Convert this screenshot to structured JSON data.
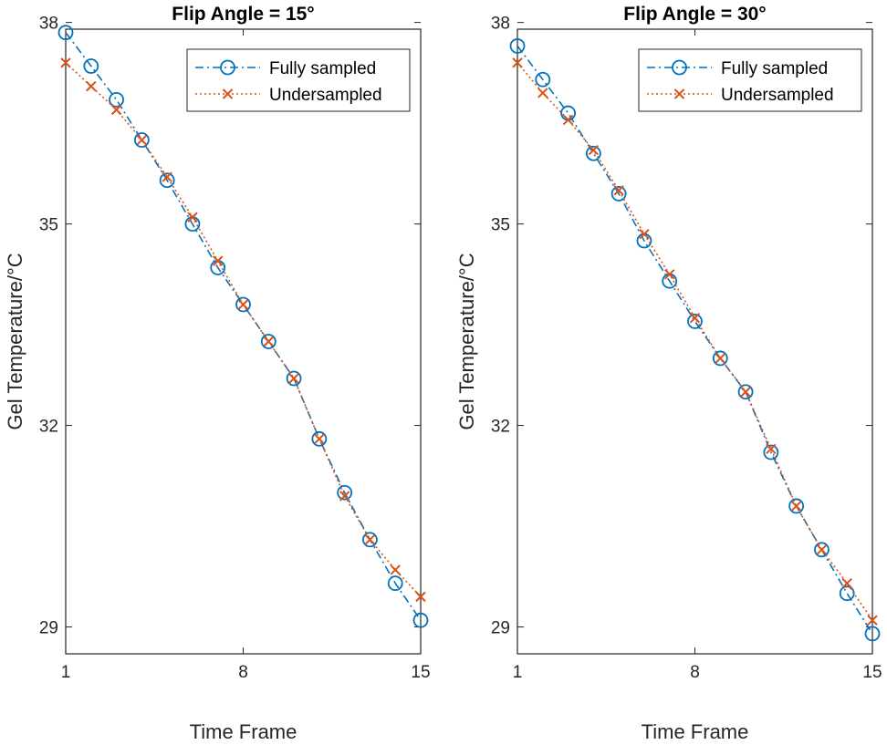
{
  "chart_data": [
    {
      "type": "line",
      "title": "Flip Angle = 15°",
      "xlabel": "Time Frame",
      "ylabel": "Gel Temperature/°C",
      "xlim": [
        1,
        15
      ],
      "ylim": [
        28.6,
        37.9
      ],
      "xticks": [
        1,
        8,
        15
      ],
      "yticks": [
        29,
        32,
        35,
        38
      ],
      "grid": false,
      "legend_position": "top-right",
      "series": [
        {
          "name": "Fully sampled",
          "color": "#0072BD",
          "linestyle": "dash-dot",
          "marker": "circle",
          "x": [
            1,
            2,
            3,
            4,
            5,
            6,
            7,
            8,
            9,
            10,
            11,
            12,
            13,
            14,
            15
          ],
          "y": [
            37.85,
            37.35,
            36.85,
            36.25,
            35.65,
            35.0,
            34.35,
            33.8,
            33.25,
            32.7,
            31.8,
            31.0,
            30.3,
            29.65,
            29.1
          ]
        },
        {
          "name": "Undersampled",
          "color": "#D95319",
          "linestyle": "dotted",
          "marker": "x",
          "x": [
            1,
            2,
            3,
            4,
            5,
            6,
            7,
            8,
            9,
            10,
            11,
            12,
            13,
            14,
            15
          ],
          "y": [
            37.4,
            37.05,
            36.7,
            36.25,
            35.7,
            35.1,
            34.45,
            33.8,
            33.25,
            32.7,
            31.8,
            30.95,
            30.3,
            29.85,
            29.45
          ]
        }
      ]
    },
    {
      "type": "line",
      "title": "Flip Angle = 30°",
      "xlabel": "Time Frame",
      "ylabel": "Gel Temperature/°C",
      "xlim": [
        1,
        15
      ],
      "ylim": [
        28.6,
        37.9
      ],
      "xticks": [
        1,
        8,
        15
      ],
      "yticks": [
        29,
        32,
        35,
        38
      ],
      "grid": false,
      "legend_position": "top-right",
      "series": [
        {
          "name": "Fully sampled",
          "color": "#0072BD",
          "linestyle": "dash-dot",
          "marker": "circle",
          "x": [
            1,
            2,
            3,
            4,
            5,
            6,
            7,
            8,
            9,
            10,
            11,
            12,
            13,
            14,
            15
          ],
          "y": [
            37.65,
            37.15,
            36.65,
            36.05,
            35.45,
            34.75,
            34.15,
            33.55,
            33.0,
            32.5,
            31.6,
            30.8,
            30.15,
            29.5,
            28.9
          ]
        },
        {
          "name": "Undersampled",
          "color": "#D95319",
          "linestyle": "dotted",
          "marker": "x",
          "x": [
            1,
            2,
            3,
            4,
            5,
            6,
            7,
            8,
            9,
            10,
            11,
            12,
            13,
            14,
            15
          ],
          "y": [
            37.4,
            36.95,
            36.55,
            36.1,
            35.5,
            34.85,
            34.25,
            33.6,
            33.0,
            32.5,
            31.65,
            30.8,
            30.15,
            29.65,
            29.1
          ]
        }
      ]
    }
  ]
}
